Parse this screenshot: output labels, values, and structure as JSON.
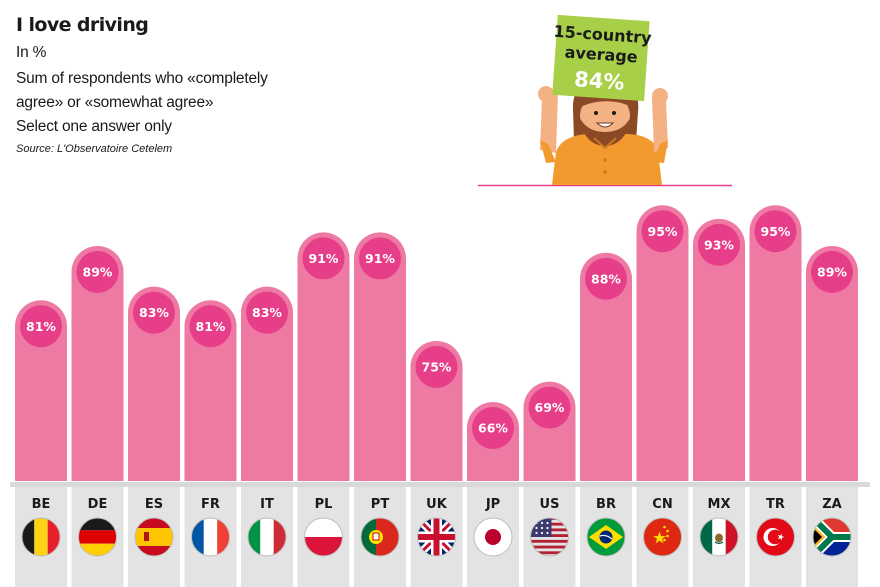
{
  "header": {
    "title": "I love driving",
    "line1": "In %",
    "line2": "Sum of respondents who «completely",
    "line3": "agree» or «somewhat agree»",
    "line4": "Select one answer only",
    "source": "Source: L'Observatoire Cetelem"
  },
  "average": {
    "line1": "15-country",
    "line2": "average",
    "value": "84%"
  },
  "colors": {
    "bar": "#ee7aa3",
    "badge": "#e63e88",
    "sign": "#a7cf48",
    "shirt": "#f39a2e"
  },
  "chart_data": {
    "type": "bar",
    "categories": [
      "BE",
      "DE",
      "ES",
      "FR",
      "IT",
      "PL",
      "PT",
      "UK",
      "JP",
      "US",
      "BR",
      "CN",
      "MX",
      "TR",
      "ZA"
    ],
    "values": [
      81,
      89,
      83,
      81,
      83,
      91,
      91,
      75,
      66,
      69,
      88,
      95,
      93,
      95,
      89
    ],
    "labels": [
      "81%",
      "89%",
      "83%",
      "81%",
      "83%",
      "91%",
      "91%",
      "75%",
      "66%",
      "69%",
      "88%",
      "95%",
      "93%",
      "95%",
      "89%"
    ],
    "flags": [
      "be-flag-icon",
      "de-flag-icon",
      "es-flag-icon",
      "fr-flag-icon",
      "it-flag-icon",
      "pl-flag-icon",
      "pt-flag-icon",
      "uk-flag-icon",
      "jp-flag-icon",
      "us-flag-icon",
      "br-flag-icon",
      "cn-flag-icon",
      "mx-flag-icon",
      "tr-flag-icon",
      "za-flag-icon"
    ],
    "average": 84,
    "title": "I love driving",
    "xlabel": "",
    "ylabel": ""
  }
}
